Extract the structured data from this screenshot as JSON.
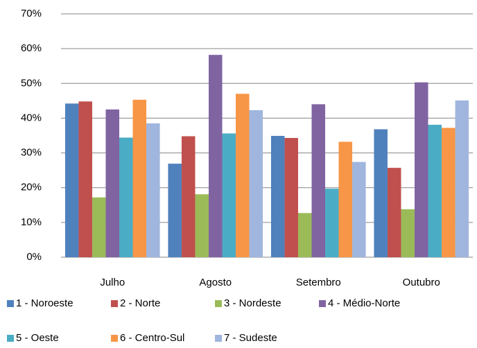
{
  "chart_data": {
    "type": "bar",
    "categories": [
      "Julho",
      "Agosto",
      "Setembro",
      "Outubro"
    ],
    "series": [
      {
        "name": "1 - Noroeste",
        "color": "#4f81bd",
        "values": [
          44.2,
          26.9,
          34.9,
          36.8
        ]
      },
      {
        "name": "2 - Norte",
        "color": "#c0504d",
        "values": [
          44.8,
          34.8,
          34.3,
          25.7
        ]
      },
      {
        "name": "3 - Nordeste",
        "color": "#9bbb59",
        "values": [
          17.2,
          18.1,
          12.7,
          13.8
        ]
      },
      {
        "name": "4 - Médio-Norte",
        "color": "#8064a2",
        "values": [
          42.5,
          58.2,
          44.0,
          50.3
        ]
      },
      {
        "name": "5 - Oeste",
        "color": "#4bacc6",
        "values": [
          34.4,
          35.6,
          19.7,
          38.1
        ]
      },
      {
        "name": "6 - Centro-Sul",
        "color": "#f79646",
        "values": [
          45.3,
          47.0,
          33.2,
          37.2
        ]
      },
      {
        "name": "7 - Sudeste",
        "color": "#a0b6de",
        "values": [
          38.5,
          42.3,
          27.4,
          45.1
        ]
      }
    ],
    "ylim": [
      0,
      70
    ],
    "yticks": [
      {
        "value": 0,
        "label": "0%"
      },
      {
        "value": 10,
        "label": "10%"
      },
      {
        "value": 20,
        "label": "20%"
      },
      {
        "value": 30,
        "label": "30%"
      },
      {
        "value": 40,
        "label": "40%"
      },
      {
        "value": 50,
        "label": "50%"
      },
      {
        "value": 60,
        "label": "60%"
      },
      {
        "value": 70,
        "label": "70%"
      }
    ],
    "grid": true
  }
}
